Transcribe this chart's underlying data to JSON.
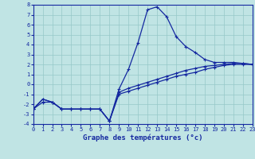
{
  "xlabel": "Graphe des températures (°c)",
  "background_color": "#c0e4e4",
  "grid_color": "#96c8c8",
  "line_color": "#1428a0",
  "xlim": [
    0,
    23
  ],
  "ylim": [
    -4,
    8
  ],
  "yticks": [
    -4,
    -3,
    -2,
    -1,
    0,
    1,
    2,
    3,
    4,
    5,
    6,
    7,
    8
  ],
  "xticks": [
    0,
    1,
    2,
    3,
    4,
    5,
    6,
    7,
    8,
    9,
    10,
    11,
    12,
    13,
    14,
    15,
    16,
    17,
    18,
    19,
    20,
    21,
    22,
    23
  ],
  "line1_y": [
    -2.5,
    -1.5,
    -1.8,
    -2.5,
    -2.5,
    -2.5,
    -2.5,
    -2.5,
    -3.7,
    -0.5,
    1.5,
    4.2,
    7.5,
    7.8,
    6.8,
    4.8,
    3.8,
    3.2,
    2.5,
    2.2,
    2.2,
    2.2,
    2.1,
    2.0
  ],
  "line2_y": [
    -2.5,
    -1.8,
    -1.8,
    -2.5,
    -2.5,
    -2.5,
    -2.5,
    -2.5,
    -3.7,
    -1.0,
    -0.7,
    -0.4,
    -0.1,
    0.2,
    0.5,
    0.8,
    1.0,
    1.2,
    1.5,
    1.7,
    1.9,
    2.0,
    2.0,
    2.0
  ],
  "line3_y": [
    -2.5,
    -1.5,
    -1.8,
    -2.5,
    -2.5,
    -2.5,
    -2.5,
    -2.5,
    -3.7,
    -0.8,
    -0.4,
    -0.1,
    0.2,
    0.5,
    0.8,
    1.1,
    1.4,
    1.6,
    1.8,
    1.9,
    2.0,
    2.1,
    2.1,
    2.0
  ],
  "xlabel_fontsize": 6.5,
  "tick_fontsize": 5.0,
  "line_width": 0.9,
  "marker_size": 3
}
